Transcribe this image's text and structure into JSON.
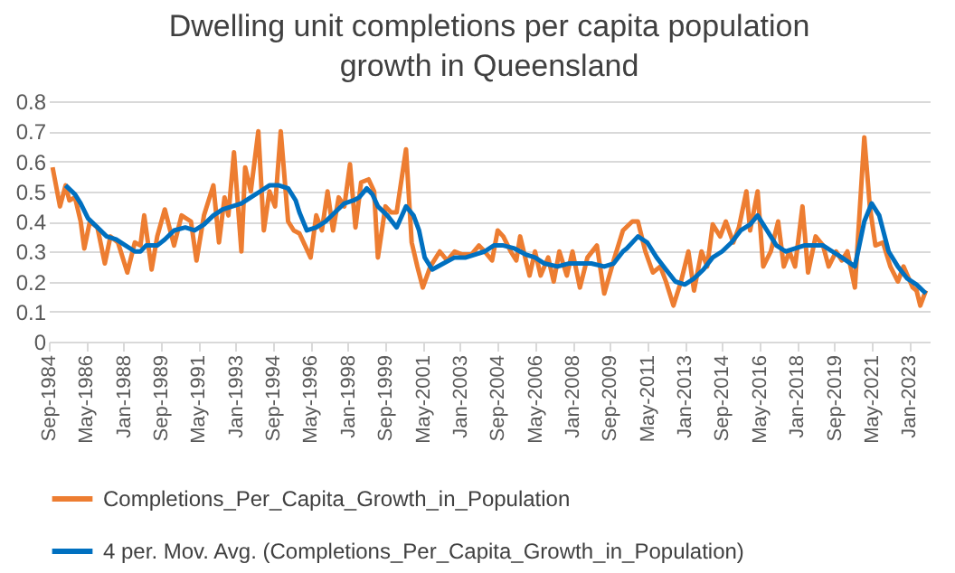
{
  "chart_data": {
    "type": "line",
    "title": "Dwelling unit completions per capita population growth in Queensland",
    "xlim": [
      "1984-09",
      "2023-12"
    ],
    "ylim": [
      0,
      0.8
    ],
    "yticks": [
      0,
      0.1,
      0.2,
      0.3,
      0.4,
      0.5,
      0.6,
      0.7,
      0.8
    ],
    "xticks": [
      {
        "value": "1984-09",
        "label": "Sep-1984"
      },
      {
        "value": "1986-05",
        "label": "May-1986"
      },
      {
        "value": "1988-01",
        "label": "Jan-1988"
      },
      {
        "value": "1989-09",
        "label": "Sep-1989"
      },
      {
        "value": "1991-05",
        "label": "May-1991"
      },
      {
        "value": "1993-01",
        "label": "Jan-1993"
      },
      {
        "value": "1994-09",
        "label": "Sep-1994"
      },
      {
        "value": "1996-05",
        "label": "May-1996"
      },
      {
        "value": "1998-01",
        "label": "Jan-1998"
      },
      {
        "value": "1999-09",
        "label": "Sep-1999"
      },
      {
        "value": "2001-05",
        "label": "May-2001"
      },
      {
        "value": "2003-01",
        "label": "Jan-2003"
      },
      {
        "value": "2004-09",
        "label": "Sep-2004"
      },
      {
        "value": "2006-05",
        "label": "May-2006"
      },
      {
        "value": "2008-01",
        "label": "Jan-2008"
      },
      {
        "value": "2009-09",
        "label": "Sep-2009"
      },
      {
        "value": "2011-05",
        "label": "May-2011"
      },
      {
        "value": "2013-01",
        "label": "Jan-2013"
      },
      {
        "value": "2014-09",
        "label": "Sep-2014"
      },
      {
        "value": "2016-05",
        "label": "May-2016"
      },
      {
        "value": "2018-01",
        "label": "Jan-2018"
      },
      {
        "value": "2019-09",
        "label": "Sep-2019"
      },
      {
        "value": "2021-05",
        "label": "May-2021"
      },
      {
        "value": "2023-01",
        "label": "Jan-2023"
      }
    ],
    "grid": "y",
    "legend": "bottom",
    "marker": "none",
    "line_style": "solid",
    "series": [
      {
        "name": "Completions_Per_Capita_Growth_in_Population",
        "color": "#ed7d31",
        "x": [
          "1984-11",
          "1985-03",
          "1985-06",
          "1985-08",
          "1985-11",
          "1986-02",
          "1986-04",
          "1986-07",
          "1986-11",
          "1987-03",
          "1987-06",
          "1987-10",
          "1988-03",
          "1988-07",
          "1988-10",
          "1988-12",
          "1989-04",
          "1989-07",
          "1989-11",
          "1990-04",
          "1990-08",
          "1991-01",
          "1991-04",
          "1991-08",
          "1992-01",
          "1992-04",
          "1992-07",
          "1992-09",
          "1992-12",
          "1993-04",
          "1993-06",
          "1993-09",
          "1994-01",
          "1994-04",
          "1994-07",
          "1994-10",
          "1995-01",
          "1995-05",
          "1995-08",
          "1995-11",
          "1996-05",
          "1996-08",
          "1996-11",
          "1997-02",
          "1997-05",
          "1997-08",
          "1997-11",
          "1998-02",
          "1998-05",
          "1998-08",
          "1998-12",
          "1999-03",
          "1999-05",
          "1999-09",
          "1999-12",
          "2000-03",
          "2000-08",
          "2000-11",
          "2001-02",
          "2001-05",
          "2001-09",
          "2002-02",
          "2002-06",
          "2002-10",
          "2003-02",
          "2003-07",
          "2003-11",
          "2004-02",
          "2004-06",
          "2004-09",
          "2004-12",
          "2005-04",
          "2005-07",
          "2005-09",
          "2006-02",
          "2006-05",
          "2006-08",
          "2006-12",
          "2007-03",
          "2007-06",
          "2007-10",
          "2008-01",
          "2008-05",
          "2008-09",
          "2009-02",
          "2009-06",
          "2009-11",
          "2010-04",
          "2010-09",
          "2010-12",
          "2011-04",
          "2011-08",
          "2011-12",
          "2012-03",
          "2012-07",
          "2012-11",
          "2013-03",
          "2013-06",
          "2013-10",
          "2014-01",
          "2014-04",
          "2014-08",
          "2014-11",
          "2015-03",
          "2015-06",
          "2015-10",
          "2015-12",
          "2016-04",
          "2016-07",
          "2016-11",
          "2017-03",
          "2017-06",
          "2017-09",
          "2017-12",
          "2018-04",
          "2018-07",
          "2018-11",
          "2019-03",
          "2019-06",
          "2019-10",
          "2020-01",
          "2020-04",
          "2020-08",
          "2021-01",
          "2021-04",
          "2021-07",
          "2021-11",
          "2022-03",
          "2022-07",
          "2022-10",
          "2023-03",
          "2023-05",
          "2023-07",
          "2023-10"
        ],
        "values": [
          0.58,
          0.45,
          0.52,
          0.47,
          0.48,
          0.4,
          0.31,
          0.4,
          0.38,
          0.26,
          0.35,
          0.33,
          0.23,
          0.33,
          0.32,
          0.42,
          0.24,
          0.35,
          0.44,
          0.32,
          0.42,
          0.4,
          0.27,
          0.42,
          0.52,
          0.33,
          0.48,
          0.42,
          0.63,
          0.3,
          0.58,
          0.5,
          0.7,
          0.37,
          0.5,
          0.45,
          0.7,
          0.4,
          0.37,
          0.36,
          0.28,
          0.42,
          0.37,
          0.5,
          0.37,
          0.48,
          0.45,
          0.59,
          0.38,
          0.53,
          0.54,
          0.5,
          0.28,
          0.45,
          0.43,
          0.43,
          0.64,
          0.33,
          0.25,
          0.18,
          0.25,
          0.3,
          0.27,
          0.3,
          0.29,
          0.29,
          0.32,
          0.3,
          0.27,
          0.37,
          0.35,
          0.3,
          0.27,
          0.35,
          0.22,
          0.3,
          0.22,
          0.28,
          0.2,
          0.3,
          0.22,
          0.3,
          0.18,
          0.28,
          0.32,
          0.16,
          0.27,
          0.37,
          0.4,
          0.4,
          0.3,
          0.23,
          0.25,
          0.2,
          0.12,
          0.2,
          0.3,
          0.17,
          0.3,
          0.25,
          0.39,
          0.35,
          0.4,
          0.33,
          0.38,
          0.5,
          0.37,
          0.5,
          0.25,
          0.3,
          0.4,
          0.25,
          0.3,
          0.25,
          0.45,
          0.23,
          0.35,
          0.32,
          0.25,
          0.3,
          0.27,
          0.3,
          0.18,
          0.68,
          0.45,
          0.32,
          0.33,
          0.25,
          0.2,
          0.25,
          0.18,
          0.17,
          0.12,
          0.17
        ]
      },
      {
        "name": "4 per. Mov. Avg. (Completions_Per_Capita_Growth_in_Population)",
        "color": "#0070c0",
        "x": [
          "1985-06",
          "1985-11",
          "1986-02",
          "1986-06",
          "1986-11",
          "1987-04",
          "1987-09",
          "1988-02",
          "1988-07",
          "1988-10",
          "1989-01",
          "1989-07",
          "1989-11",
          "1990-04",
          "1990-10",
          "1991-03",
          "1991-08",
          "1992-01",
          "1992-06",
          "1992-11",
          "1993-04",
          "1993-09",
          "1994-02",
          "1994-07",
          "1994-12",
          "1995-05",
          "1995-09",
          "1995-11",
          "1996-03",
          "1996-08",
          "1997-01",
          "1997-06",
          "1997-11",
          "1998-04",
          "1998-07",
          "1998-11",
          "1999-02",
          "1999-05",
          "1999-10",
          "2000-03",
          "2000-08",
          "2000-12",
          "2001-03",
          "2001-06",
          "2001-10",
          "2002-04",
          "2002-10",
          "2003-04",
          "2003-09",
          "2004-02",
          "2004-07",
          "2004-12",
          "2005-06",
          "2005-12",
          "2006-05",
          "2006-10",
          "2007-05",
          "2007-11",
          "2008-05",
          "2008-11",
          "2009-06",
          "2009-11",
          "2010-04",
          "2010-06",
          "2010-12",
          "2011-05",
          "2011-10",
          "2012-03",
          "2012-08",
          "2013-01",
          "2013-06",
          "2013-11",
          "2014-04",
          "2014-09",
          "2015-02",
          "2015-07",
          "2015-12",
          "2016-04",
          "2016-09",
          "2017-02",
          "2017-07",
          "2017-12",
          "2018-05",
          "2018-10",
          "2019-03",
          "2019-08",
          "2020-01",
          "2020-08",
          "2021-01",
          "2021-05",
          "2021-09",
          "2022-02",
          "2022-07",
          "2022-12",
          "2023-05",
          "2023-10"
        ],
        "values": [
          0.52,
          0.49,
          0.46,
          0.41,
          0.38,
          0.35,
          0.34,
          0.32,
          0.3,
          0.3,
          0.32,
          0.32,
          0.34,
          0.37,
          0.38,
          0.37,
          0.39,
          0.42,
          0.44,
          0.45,
          0.46,
          0.48,
          0.5,
          0.52,
          0.52,
          0.51,
          0.47,
          0.43,
          0.37,
          0.38,
          0.4,
          0.43,
          0.46,
          0.47,
          0.48,
          0.51,
          0.49,
          0.45,
          0.42,
          0.38,
          0.45,
          0.42,
          0.37,
          0.28,
          0.24,
          0.26,
          0.28,
          0.28,
          0.29,
          0.3,
          0.32,
          0.32,
          0.31,
          0.29,
          0.28,
          0.26,
          0.25,
          0.26,
          0.26,
          0.26,
          0.25,
          0.26,
          0.3,
          0.31,
          0.35,
          0.33,
          0.28,
          0.24,
          0.2,
          0.19,
          0.21,
          0.24,
          0.28,
          0.3,
          0.33,
          0.37,
          0.39,
          0.42,
          0.37,
          0.32,
          0.3,
          0.31,
          0.32,
          0.32,
          0.32,
          0.3,
          0.28,
          0.25,
          0.4,
          0.46,
          0.42,
          0.3,
          0.25,
          0.21,
          0.19,
          0.16
        ]
      }
    ]
  }
}
